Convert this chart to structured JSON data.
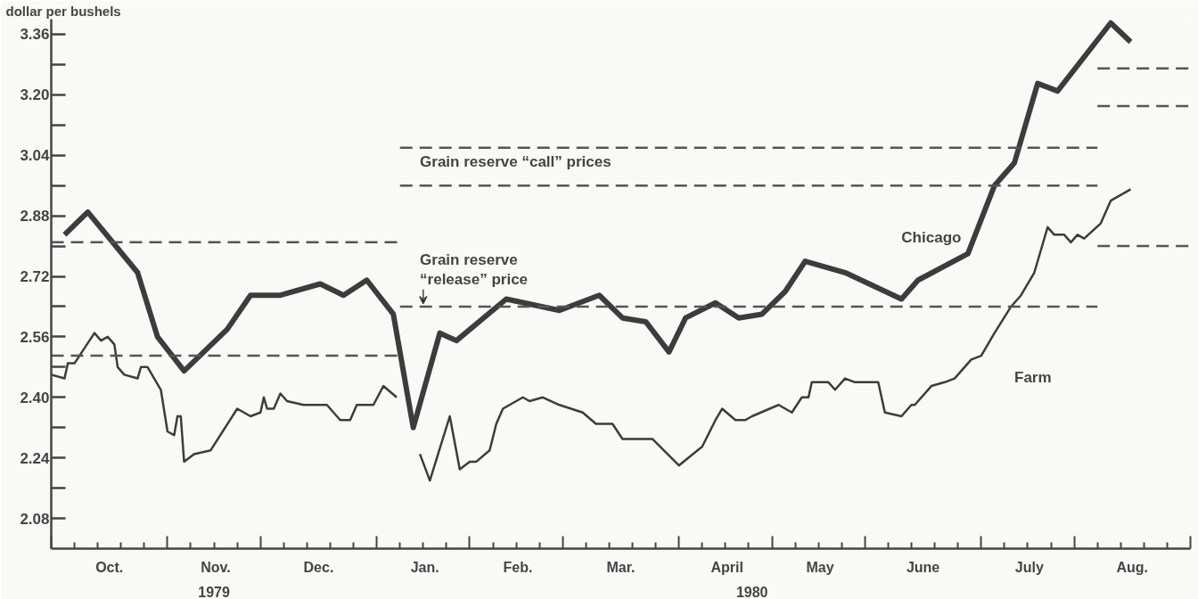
{
  "chart_data": {
    "type": "line",
    "ylabel": "dollar per bushels",
    "xlim": [
      "1979-10-01",
      "1980-09-08"
    ],
    "ylim": [
      2.0,
      3.4
    ],
    "xticks": [
      {
        "value": "1979-10-01",
        "label": null
      },
      {
        "value": "1979-10-08",
        "label": null
      },
      {
        "value": "1979-10-15",
        "label": null
      },
      {
        "value": "1979-10-18T12:00",
        "label": "Oct."
      },
      {
        "value": "1979-10-22",
        "label": null
      },
      {
        "value": "1979-10-29",
        "label": null
      },
      {
        "value": "1979-11-05",
        "label": null
      },
      {
        "value": "1979-11-12",
        "label": null
      },
      {
        "value": "1979-11-19",
        "label": null
      },
      {
        "value": "1979-11-19T12:00",
        "label": "Nov."
      },
      {
        "value": "1979-11-26",
        "label": null
      },
      {
        "value": "1979-12-03",
        "label": null
      },
      {
        "value": "1979-12-10",
        "label": null
      },
      {
        "value": "1979-12-17",
        "label": null
      },
      {
        "value": "1979-12-20T12:00",
        "label": "Dec."
      },
      {
        "value": "1979-12-24",
        "label": null
      },
      {
        "value": "1979-12-31",
        "label": null
      },
      {
        "value": "1980-01-07",
        "label": null
      },
      {
        "value": "1980-01-14",
        "label": null
      },
      {
        "value": "1980-01-21",
        "label": null
      },
      {
        "value": "1980-01-21T12:00",
        "label": "Jan."
      },
      {
        "value": "1980-01-28",
        "label": null
      },
      {
        "value": "1980-02-04",
        "label": null
      },
      {
        "value": "1980-02-11",
        "label": null
      },
      {
        "value": "1980-02-18",
        "label": null
      },
      {
        "value": "1980-02-18T12:00",
        "label": "Feb."
      },
      {
        "value": "1980-02-25",
        "label": null
      },
      {
        "value": "1980-03-03",
        "label": null
      },
      {
        "value": "1980-03-10",
        "label": null
      },
      {
        "value": "1980-03-17",
        "label": null
      },
      {
        "value": "1980-03-20T12:00",
        "label": "Mar."
      },
      {
        "value": "1980-03-24",
        "label": null
      },
      {
        "value": "1980-03-31",
        "label": null
      },
      {
        "value": "1980-04-07",
        "label": null
      },
      {
        "value": "1980-04-14",
        "label": null
      },
      {
        "value": "1980-04-21",
        "label": null
      },
      {
        "value": "1980-04-21T12:00",
        "label": "April"
      },
      {
        "value": "1980-04-28",
        "label": null
      },
      {
        "value": "1980-05-05",
        "label": null
      },
      {
        "value": "1980-05-12",
        "label": null
      },
      {
        "value": "1980-05-19",
        "label": null
      },
      {
        "value": "1980-05-19T12:00",
        "label": "May"
      },
      {
        "value": "1980-05-26",
        "label": null
      },
      {
        "value": "1980-06-02",
        "label": null
      },
      {
        "value": "1980-06-09",
        "label": null
      },
      {
        "value": "1980-06-16",
        "label": null
      },
      {
        "value": "1980-06-19T12:00",
        "label": "June"
      },
      {
        "value": "1980-06-23",
        "label": null
      },
      {
        "value": "1980-06-30",
        "label": null
      },
      {
        "value": "1980-07-07",
        "label": null
      },
      {
        "value": "1980-07-14",
        "label": null
      },
      {
        "value": "1980-07-21",
        "label": null
      },
      {
        "value": "1980-07-21T12:00",
        "label": "July"
      },
      {
        "value": "1980-07-28",
        "label": null
      },
      {
        "value": "1980-08-04",
        "label": null
      },
      {
        "value": "1980-08-11",
        "label": null
      },
      {
        "value": "1980-08-18",
        "label": null
      },
      {
        "value": "1980-08-21T12:00",
        "label": "Aug."
      },
      {
        "value": "1980-08-25",
        "label": null
      },
      {
        "value": "1980-09-01",
        "label": null
      },
      {
        "value": "1980-09-08",
        "label": null
      }
    ],
    "yticks": [
      2.08,
      {
        "value": 2.16,
        "label": null
      },
      2.24,
      {
        "value": 2.32,
        "label": null
      },
      {
        "value": 2.4,
        "label": "2.40"
      },
      {
        "value": 2.48,
        "label": null
      },
      2.56,
      {
        "value": 2.64,
        "label": null
      },
      2.72,
      {
        "value": 2.8,
        "label": null
      },
      2.88,
      {
        "value": 2.96,
        "label": null
      },
      3.04,
      {
        "value": 3.12,
        "label": null
      },
      {
        "value": 3.2,
        "label": "3.20"
      },
      {
        "value": 3.28,
        "label": null
      },
      3.36
    ],
    "grid": false,
    "line_style": "solid",
    "marker": "none",
    "annotations": [
      "Grain reserve “call” prices",
      "Grain reserve\n“release” price",
      "1979",
      "1980"
    ],
    "series": [
      {
        "name": "Chicago",
        "color": "#3c3c3c",
        "x": [
          "1979-10-05",
          "1979-10-12",
          "1979-10-27",
          "1979-11-02",
          "1979-11-10",
          "1979-11-23",
          "1979-11-30",
          "1979-12-09",
          "1979-12-21",
          "1979-12-28",
          "1980-01-04",
          "1980-01-12",
          "1980-01-18",
          "1980-01-26",
          "1980-01-31",
          "1980-02-15",
          "1980-03-02",
          "1980-03-14",
          "1980-03-21",
          "1980-03-28",
          "1980-04-04",
          "1980-04-09",
          "1980-04-18",
          "1980-04-25",
          "1980-05-02",
          "1980-05-09",
          "1980-05-15",
          "1980-05-27",
          "1980-06-13",
          "1980-06-18",
          "1980-07-03",
          "1980-07-11",
          "1980-07-17",
          "1980-07-24",
          "1980-07-30",
          "1980-08-15",
          "1980-08-21"
        ],
        "values": [
          2.83,
          2.89,
          2.73,
          2.56,
          2.47,
          2.58,
          2.67,
          2.67,
          2.7,
          2.67,
          2.71,
          2.62,
          2.32,
          2.57,
          2.55,
          2.66,
          2.63,
          2.67,
          2.61,
          2.6,
          2.52,
          2.61,
          2.65,
          2.61,
          2.62,
          2.68,
          2.76,
          2.73,
          2.66,
          2.71,
          2.78,
          2.96,
          3.02,
          3.23,
          3.21,
          3.39,
          3.34
        ]
      },
      {
        "name": "Farm",
        "color": "#3c3c3c",
        "x": [
          "1979-10-01",
          "1979-10-05",
          "1979-10-06",
          "1979-10-08",
          "1979-10-14",
          "1979-10-16",
          "1979-10-18",
          "1979-10-20",
          "1979-10-21",
          "1979-10-23",
          "1979-10-27",
          "1979-10-28",
          "1979-10-30",
          "1979-11-03",
          "1979-11-05",
          "1979-11-07",
          "1979-11-08",
          "1979-11-09",
          "1979-11-10",
          "1979-11-13",
          "1979-11-18",
          "1979-11-26",
          "1979-11-30",
          "1979-12-03",
          "1979-12-04",
          "1979-12-05",
          "1979-12-07",
          "1979-12-09",
          "1979-12-11",
          "1979-12-16",
          "1979-12-23",
          "1979-12-27",
          "1979-12-30",
          "1980-01-01",
          "1980-01-06",
          "1980-01-09",
          "1980-01-13",
          "1980-01-16",
          "1980-01-20",
          "1980-01-23",
          "1980-01-29",
          "1980-02-01",
          "1980-02-04",
          "1980-02-06",
          "1980-02-10",
          "1980-02-12",
          "1980-02-14",
          "1980-02-20",
          "1980-02-22",
          "1980-02-26",
          "1980-03-02",
          "1980-03-09",
          "1980-03-13",
          "1980-03-18",
          "1980-03-21",
          "1980-03-30",
          "1980-04-07",
          "1980-04-14",
          "1980-04-18",
          "1980-04-20",
          "1980-04-24",
          "1980-04-27",
          "1980-04-29",
          "1980-05-07",
          "1980-05-11",
          "1980-05-14",
          "1980-05-16",
          "1980-05-17",
          "1980-05-22",
          "1980-05-24",
          "1980-05-27",
          "1980-05-30",
          "1980-06-06",
          "1980-06-08",
          "1980-06-13",
          "1980-06-16",
          "1980-06-17",
          "1980-06-22",
          "1980-06-26",
          "1980-06-29",
          "1980-07-04",
          "1980-07-07",
          "1980-07-11",
          "1980-07-16",
          "1980-07-19",
          "1980-07-23",
          "1980-07-27",
          "1980-07-29",
          "1980-08-01",
          "1980-08-03",
          "1980-08-05",
          "1980-08-07",
          "1980-08-12",
          "1980-08-15",
          "1980-08-21"
        ],
        "values": [
          2.46,
          2.45,
          2.49,
          2.49,
          2.57,
          2.55,
          2.56,
          2.54,
          2.48,
          2.46,
          2.45,
          2.48,
          2.48,
          2.42,
          2.31,
          2.3,
          2.35,
          2.35,
          2.23,
          2.25,
          2.26,
          2.37,
          2.35,
          2.36,
          2.4,
          2.37,
          2.37,
          2.41,
          2.39,
          2.38,
          2.38,
          2.34,
          2.34,
          2.38,
          2.38,
          2.43,
          2.4,
          null,
          2.25,
          2.18,
          2.35,
          2.21,
          2.23,
          2.23,
          2.26,
          2.33,
          2.37,
          2.4,
          2.39,
          2.4,
          2.38,
          2.36,
          2.33,
          2.33,
          2.29,
          2.29,
          2.22,
          2.27,
          2.34,
          2.37,
          2.34,
          2.34,
          2.35,
          2.38,
          2.36,
          2.4,
          2.4,
          2.44,
          2.44,
          2.42,
          2.45,
          2.44,
          2.44,
          2.36,
          2.35,
          2.38,
          2.38,
          2.43,
          2.44,
          2.45,
          2.5,
          2.51,
          2.57,
          2.64,
          2.67,
          2.73,
          2.85,
          2.83,
          2.83,
          2.81,
          2.83,
          2.82,
          2.86,
          2.92,
          2.95
        ]
      },
      {
        "color": "#555555",
        "line_style": "dashed",
        "x": [
          "1979-10-01",
          "1980-01-14"
        ],
        "values": [
          2.81,
          2.81
        ]
      },
      {
        "color": "#555555",
        "line_style": "dashed",
        "x": [
          "1979-10-01",
          "1980-01-14"
        ],
        "values": [
          2.51,
          2.51
        ]
      },
      {
        "color": "#555555",
        "line_style": "dashed",
        "x": [
          "1980-01-14",
          "1980-08-11"
        ],
        "values": [
          3.06,
          3.06
        ]
      },
      {
        "color": "#555555",
        "line_style": "dashed",
        "x": [
          "1980-01-14",
          "1980-08-11"
        ],
        "values": [
          2.96,
          2.96
        ]
      },
      {
        "color": "#555555",
        "line_style": "dashed",
        "x": [
          "1980-01-14",
          "1980-08-11"
        ],
        "values": [
          2.64,
          2.64
        ]
      },
      {
        "color": "#555555",
        "line_style": "dashed",
        "x": [
          "1980-08-11",
          "1980-09-08"
        ],
        "values": [
          3.27,
          3.27
        ]
      },
      {
        "color": "#555555",
        "line_style": "dashed",
        "x": [
          "1980-08-11",
          "1980-09-08"
        ],
        "values": [
          3.17,
          3.17
        ]
      },
      {
        "color": "#555555",
        "line_style": "dashed",
        "x": [
          "1980-08-11",
          "1980-09-08"
        ],
        "values": [
          2.8,
          2.8
        ]
      }
    ]
  }
}
